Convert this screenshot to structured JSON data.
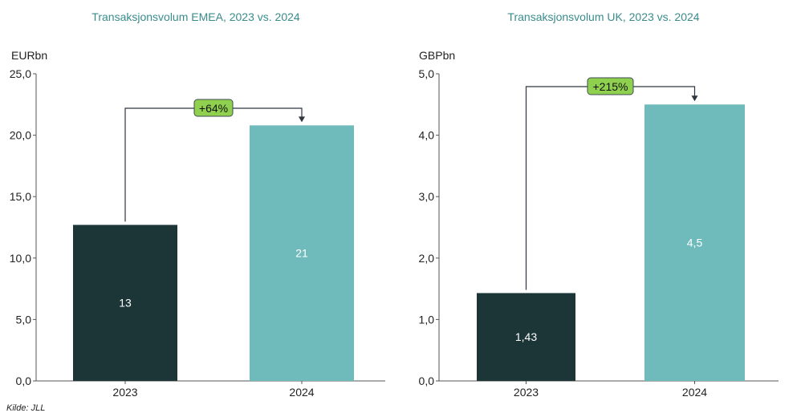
{
  "colors": {
    "bar_2023": "#1c3638",
    "bar_2024": "#6fbbbc",
    "badge": "#8fd14f",
    "title": "#3a8c8c",
    "axis": "#555555",
    "connector": "#2f3640"
  },
  "source": "Kilde: JLL",
  "chart_data": [
    {
      "type": "bar",
      "title": "Transaksjonsvolum EMEA, 2023 vs. 2024",
      "ylabel": "EURbn",
      "xlabel": "",
      "categories": [
        "2023",
        "2024"
      ],
      "values": [
        12.7,
        20.8
      ],
      "data_labels": [
        "13",
        "21"
      ],
      "ylim": [
        0,
        25
      ],
      "yticks": [
        "0,0",
        "5,0",
        "10,0",
        "15,0",
        "20,0",
        "25,0"
      ],
      "ytick_values": [
        0,
        5,
        10,
        15,
        20,
        25
      ],
      "grid": false,
      "annotation": "+64%"
    },
    {
      "type": "bar",
      "title": "Transaksjonsvolum UK, 2023 vs. 2024",
      "ylabel": "GBPbn",
      "xlabel": "",
      "categories": [
        "2023",
        "2024"
      ],
      "values": [
        1.43,
        4.5
      ],
      "data_labels": [
        "1,43",
        "4,5"
      ],
      "ylim": [
        0,
        5
      ],
      "yticks": [
        "0,0",
        "1,0",
        "2,0",
        "3,0",
        "4,0",
        "5,0"
      ],
      "ytick_values": [
        0,
        1,
        2,
        3,
        4,
        5
      ],
      "grid": false,
      "annotation": "+215%"
    }
  ]
}
